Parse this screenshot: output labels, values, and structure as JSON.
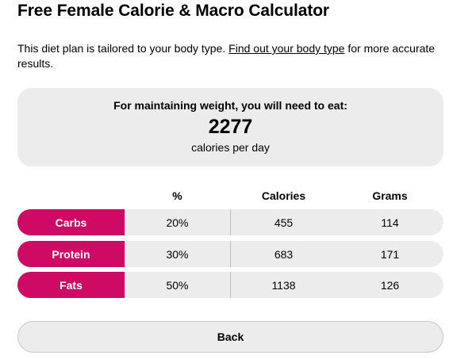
{
  "page": {
    "title": "Free Female Calorie & Macro Calculator"
  },
  "intro": {
    "text_before": "This diet plan is tailored to your body type. ",
    "link_text": "Find out your body type",
    "text_after": " for more accurate results."
  },
  "summary": {
    "lead": "For maintaining weight, you will need to eat:",
    "calories": "2277",
    "unit": "calories per day"
  },
  "table": {
    "headers": [
      "%",
      "Calories",
      "Grams"
    ],
    "rows": [
      {
        "name": "Carbs",
        "percent": "20%",
        "calories": "455",
        "grams": "114"
      },
      {
        "name": "Protein",
        "percent": "30%",
        "calories": "683",
        "grams": "171"
      },
      {
        "name": "Fats",
        "percent": "50%",
        "calories": "1138",
        "grams": "126"
      }
    ]
  },
  "actions": {
    "back_label": "Back"
  },
  "colors": {
    "accent": "#cf0a64",
    "panel": "#ececec"
  }
}
